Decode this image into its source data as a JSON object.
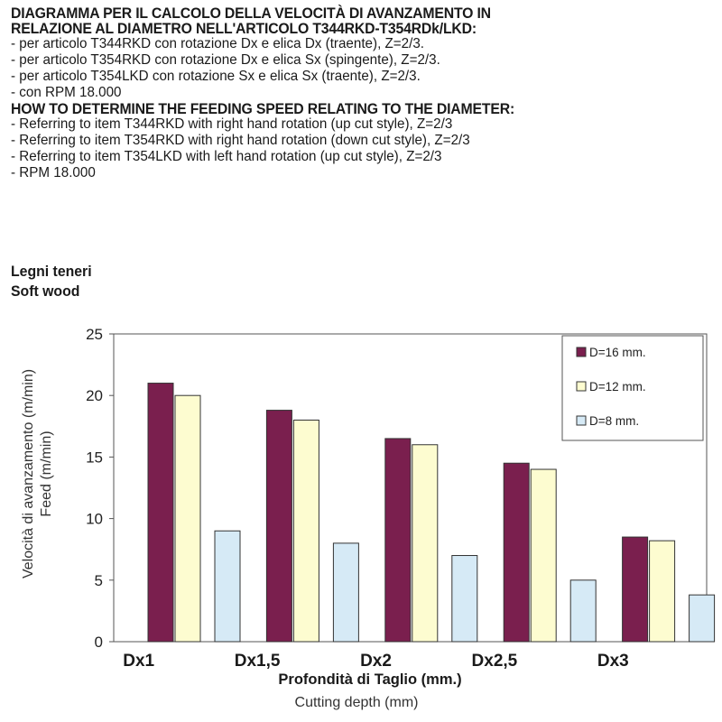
{
  "heading": {
    "it_title_1": "DIAGRAMMA PER IL CALCOLO DELLA VELOCITÀ DI AVANZAMENTO IN",
    "it_title_2": "RELAZIONE AL DIAMETRO NELL'ARTICOLO T344RKD-T354RDk/LKD:",
    "it_lines": [
      "- per articolo T344RKD con rotazione Dx e elica Dx (traente), Z=2/3.",
      "- per articolo T354RKD con rotazione Dx e elica Sx (spingente), Z=2/3.",
      "- per articolo T354LKD con rotazione Sx e elica Sx (traente), Z=2/3.",
      "- con RPM 18.000"
    ],
    "en_title": "HOW TO DETERMINE THE FEEDING SPEED RELATING TO THE DIAMETER:",
    "en_lines": [
      "- Referring to item T344RKD with right hand rotation (up cut style), Z=2/3",
      "- Referring to item T354RKD with right hand rotation (down cut style), Z=2/3",
      "- Referring to item T354LKD with left hand rotation (up cut style), Z=2/3",
      "- RPM 18.000"
    ]
  },
  "chart_data": {
    "type": "bar",
    "title": "Legni teneri",
    "subtitle": "Soft wood",
    "categories": [
      "Dx1",
      "Dx1,5",
      "Dx2",
      "Dx2,5",
      "Dx3"
    ],
    "series": [
      {
        "name": "D=16 mm.",
        "color": "#7a1f4e",
        "values": [
          21,
          18.8,
          16.5,
          14.5,
          8.5
        ]
      },
      {
        "name": "D=12 mm.",
        "color": "#fdfcd0",
        "values": [
          20,
          18,
          16,
          14,
          8.2
        ]
      },
      {
        "name": "D=8 mm.",
        "color": "#d6eaf6",
        "values": [
          9,
          8,
          7,
          5,
          3.8
        ]
      }
    ],
    "xlabel": "Profondità di Taglio (mm.)",
    "xlabel2": "Cutting depth (mm)",
    "ylabel": "Velocità di avanzamento (m/min)",
    "ylabel2": "Feed (m/min)",
    "ylim": [
      0,
      25
    ],
    "yticks": [
      0,
      5,
      10,
      15,
      20,
      25
    ],
    "grid": false,
    "legend_position": "top-right"
  }
}
